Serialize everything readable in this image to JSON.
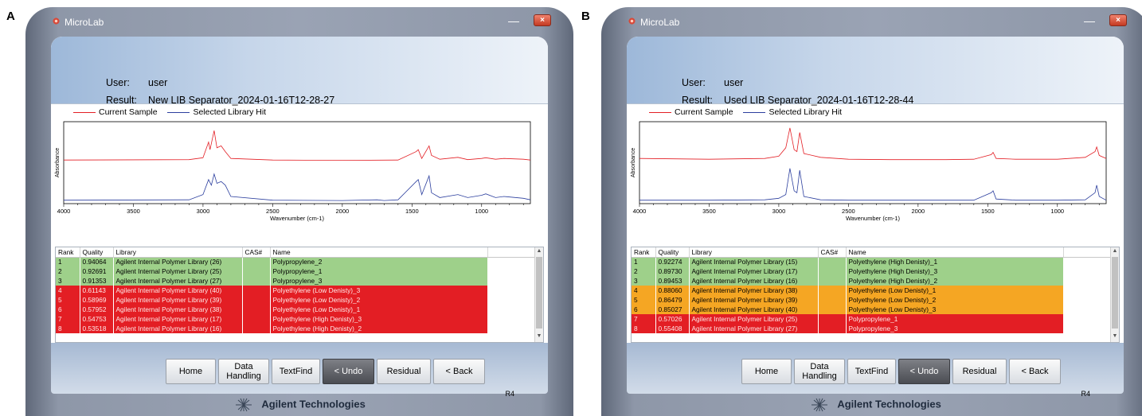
{
  "app": {
    "title": "MicroLab",
    "brand": "Agilent Technologies",
    "labels": {
      "user": "User:",
      "result": "Result:"
    },
    "legend": {
      "current": "Current Sample",
      "library": "Selected Library Hit"
    },
    "table_headers": [
      "Rank",
      "Quality",
      "Library",
      "CAS#",
      "Name"
    ],
    "buttons": [
      "Home",
      "Data Handling",
      "TextFind",
      "< Undo",
      "Residual",
      "< Back"
    ],
    "revision": "R4"
  },
  "colors": {
    "current_sample": "#e31e24",
    "library_hit": "#2c3f9e",
    "good": "#9ed08a",
    "mid": "#f5a623",
    "bad": "#e31e24"
  },
  "panels": [
    {
      "letter": "A",
      "user": "user",
      "result": "New LIB Separator_2024-01-16T12-28-27",
      "chart_data": {
        "type": "line",
        "xlabel": "Wavenumber (cm-1)",
        "ylabel": "Absorbance",
        "xlim": [
          4000,
          650
        ],
        "xticks": [
          4000,
          3500,
          3000,
          2500,
          2000,
          1500,
          1000
        ],
        "series": [
          {
            "name": "Current Sample",
            "points": [
              [
                4000,
                0.08
              ],
              [
                3100,
                0.09
              ],
              [
                3000,
                0.14
              ],
              [
                2960,
                0.55
              ],
              [
                2950,
                0.35
              ],
              [
                2920,
                0.85
              ],
              [
                2900,
                0.4
              ],
              [
                2870,
                0.45
              ],
              [
                2840,
                0.3
              ],
              [
                2800,
                0.12
              ],
              [
                2500,
                0.08
              ],
              [
                2000,
                0.07
              ],
              [
                1600,
                0.08
              ],
              [
                1470,
                0.3
              ],
              [
                1455,
                0.35
              ],
              [
                1430,
                0.12
              ],
              [
                1377,
                0.45
              ],
              [
                1360,
                0.2
              ],
              [
                1300,
                0.1
              ],
              [
                1170,
                0.15
              ],
              [
                1100,
                0.09
              ],
              [
                1000,
                0.12
              ],
              [
                970,
                0.14
              ],
              [
                900,
                0.1
              ],
              [
                840,
                0.12
              ],
              [
                700,
                0.1
              ],
              [
                650,
                0.08
              ]
            ]
          },
          {
            "name": "Selected Library Hit",
            "points": [
              [
                4000,
                0.05
              ],
              [
                3100,
                0.06
              ],
              [
                3000,
                0.2
              ],
              [
                2960,
                0.6
              ],
              [
                2940,
                0.45
              ],
              [
                2920,
                0.75
              ],
              [
                2900,
                0.5
              ],
              [
                2870,
                0.55
              ],
              [
                2840,
                0.45
              ],
              [
                2800,
                0.15
              ],
              [
                2500,
                0.05
              ],
              [
                2000,
                0.04
              ],
              [
                1750,
                0.06
              ],
              [
                1700,
                0.04
              ],
              [
                1600,
                0.06
              ],
              [
                1470,
                0.55
              ],
              [
                1455,
                0.6
              ],
              [
                1430,
                0.2
              ],
              [
                1377,
                0.7
              ],
              [
                1360,
                0.25
              ],
              [
                1300,
                0.12
              ],
              [
                1170,
                0.2
              ],
              [
                1100,
                0.12
              ],
              [
                1000,
                0.18
              ],
              [
                970,
                0.22
              ],
              [
                900,
                0.12
              ],
              [
                840,
                0.15
              ],
              [
                700,
                0.1
              ],
              [
                650,
                0.06
              ]
            ]
          }
        ]
      },
      "rows": [
        {
          "rank": "1",
          "quality": "0.94064",
          "library": "Agilent Internal Polymer Library (26)",
          "cas": "",
          "name": "Polypropylene_2",
          "status": "good"
        },
        {
          "rank": "2",
          "quality": "0.92691",
          "library": "Agilent Internal Polymer Library (25)",
          "cas": "",
          "name": "Polypropylene_1",
          "status": "good"
        },
        {
          "rank": "3",
          "quality": "0.91353",
          "library": "Agilent Internal Polymer Library (27)",
          "cas": "",
          "name": "Polypropylene_3",
          "status": "good"
        },
        {
          "rank": "4",
          "quality": "0.61143",
          "library": "Agilent Internal Polymer Library (40)",
          "cas": "",
          "name": "Polyethylene (Low Denisty)_3",
          "status": "bad"
        },
        {
          "rank": "5",
          "quality": "0.58969",
          "library": "Agilent Internal Polymer Library (39)",
          "cas": "",
          "name": "Polyethylene (Low Denisty)_2",
          "status": "bad"
        },
        {
          "rank": "6",
          "quality": "0.57952",
          "library": "Agilent Internal Polymer Library (38)",
          "cas": "",
          "name": "Polyethylene (Low Denisty)_1",
          "status": "bad"
        },
        {
          "rank": "7",
          "quality": "0.54753",
          "library": "Agilent Internal Polymer Library (17)",
          "cas": "",
          "name": "Polyethylene (High Denisty)_3",
          "status": "bad"
        },
        {
          "rank": "8",
          "quality": "0.53518",
          "library": "Agilent Internal Polymer Library (16)",
          "cas": "",
          "name": "Polyethylene (High Denisty)_2",
          "status": "bad"
        }
      ]
    },
    {
      "letter": "B",
      "user": "user",
      "result": "Used LIB Separator_2024-01-16T12-28-44",
      "chart_data": {
        "type": "line",
        "xlabel": "Wavenumber (cm-1)",
        "ylabel": "Absorbance",
        "xlim": [
          4000,
          650
        ],
        "xticks": [
          4000,
          3500,
          3000,
          2500,
          2000,
          1500,
          1000
        ],
        "series": [
          {
            "name": "Current Sample",
            "points": [
              [
                4000,
                0.12
              ],
              [
                3500,
                0.1
              ],
              [
                3100,
                0.12
              ],
              [
                3000,
                0.18
              ],
              [
                2950,
                0.4
              ],
              [
                2920,
                0.92
              ],
              [
                2890,
                0.35
              ],
              [
                2870,
                0.3
              ],
              [
                2850,
                0.8
              ],
              [
                2820,
                0.25
              ],
              [
                2700,
                0.15
              ],
              [
                2500,
                0.1
              ],
              [
                2200,
                0.09
              ],
              [
                1800,
                0.09
              ],
              [
                1600,
                0.1
              ],
              [
                1475,
                0.22
              ],
              [
                1462,
                0.28
              ],
              [
                1440,
                0.12
              ],
              [
                1300,
                0.1
              ],
              [
                1000,
                0.1
              ],
              [
                800,
                0.15
              ],
              [
                730,
                0.3
              ],
              [
                718,
                0.42
              ],
              [
                700,
                0.2
              ],
              [
                650,
                0.12
              ]
            ]
          },
          {
            "name": "Selected Library Hit",
            "points": [
              [
                4000,
                0.05
              ],
              [
                3500,
                0.05
              ],
              [
                3100,
                0.06
              ],
              [
                3000,
                0.1
              ],
              [
                2950,
                0.2
              ],
              [
                2920,
                0.9
              ],
              [
                2890,
                0.3
              ],
              [
                2870,
                0.25
              ],
              [
                2850,
                0.85
              ],
              [
                2820,
                0.15
              ],
              [
                2700,
                0.06
              ],
              [
                2500,
                0.05
              ],
              [
                2000,
                0.05
              ],
              [
                1600,
                0.05
              ],
              [
                1475,
                0.25
              ],
              [
                1462,
                0.3
              ],
              [
                1440,
                0.08
              ],
              [
                1300,
                0.05
              ],
              [
                1000,
                0.05
              ],
              [
                800,
                0.06
              ],
              [
                730,
                0.25
              ],
              [
                718,
                0.45
              ],
              [
                700,
                0.15
              ],
              [
                650,
                0.05
              ]
            ]
          }
        ]
      },
      "rows": [
        {
          "rank": "1",
          "quality": "0.92274",
          "library": "Agilent Internal Polymer Library (15)",
          "cas": "",
          "name": "Polyethylene (High Denisty)_1",
          "status": "good"
        },
        {
          "rank": "2",
          "quality": "0.89730",
          "library": "Agilent Internal Polymer Library (17)",
          "cas": "",
          "name": "Polyethylene (High Denisty)_3",
          "status": "good"
        },
        {
          "rank": "3",
          "quality": "0.89453",
          "library": "Agilent Internal Polymer Library (16)",
          "cas": "",
          "name": "Polyethylene (High Denisty)_2",
          "status": "good"
        },
        {
          "rank": "4",
          "quality": "0.88060",
          "library": "Agilent Internal Polymer Library (38)",
          "cas": "",
          "name": "Polyethylene (Low Denisty)_1",
          "status": "mid"
        },
        {
          "rank": "5",
          "quality": "0.86479",
          "library": "Agilent Internal Polymer Library (39)",
          "cas": "",
          "name": "Polyethylene (Low Denisty)_2",
          "status": "mid"
        },
        {
          "rank": "6",
          "quality": "0.85027",
          "library": "Agilent Internal Polymer Library (40)",
          "cas": "",
          "name": "Polyethylene (Low Denisty)_3",
          "status": "mid"
        },
        {
          "rank": "7",
          "quality": "0.57026",
          "library": "Agilent Internal Polymer Library (25)",
          "cas": "",
          "name": "Polypropylene_1",
          "status": "bad"
        },
        {
          "rank": "8",
          "quality": "0.55408",
          "library": "Agilent Internal Polymer Library (27)",
          "cas": "",
          "name": "Polypropylene_3",
          "status": "bad"
        }
      ]
    }
  ]
}
